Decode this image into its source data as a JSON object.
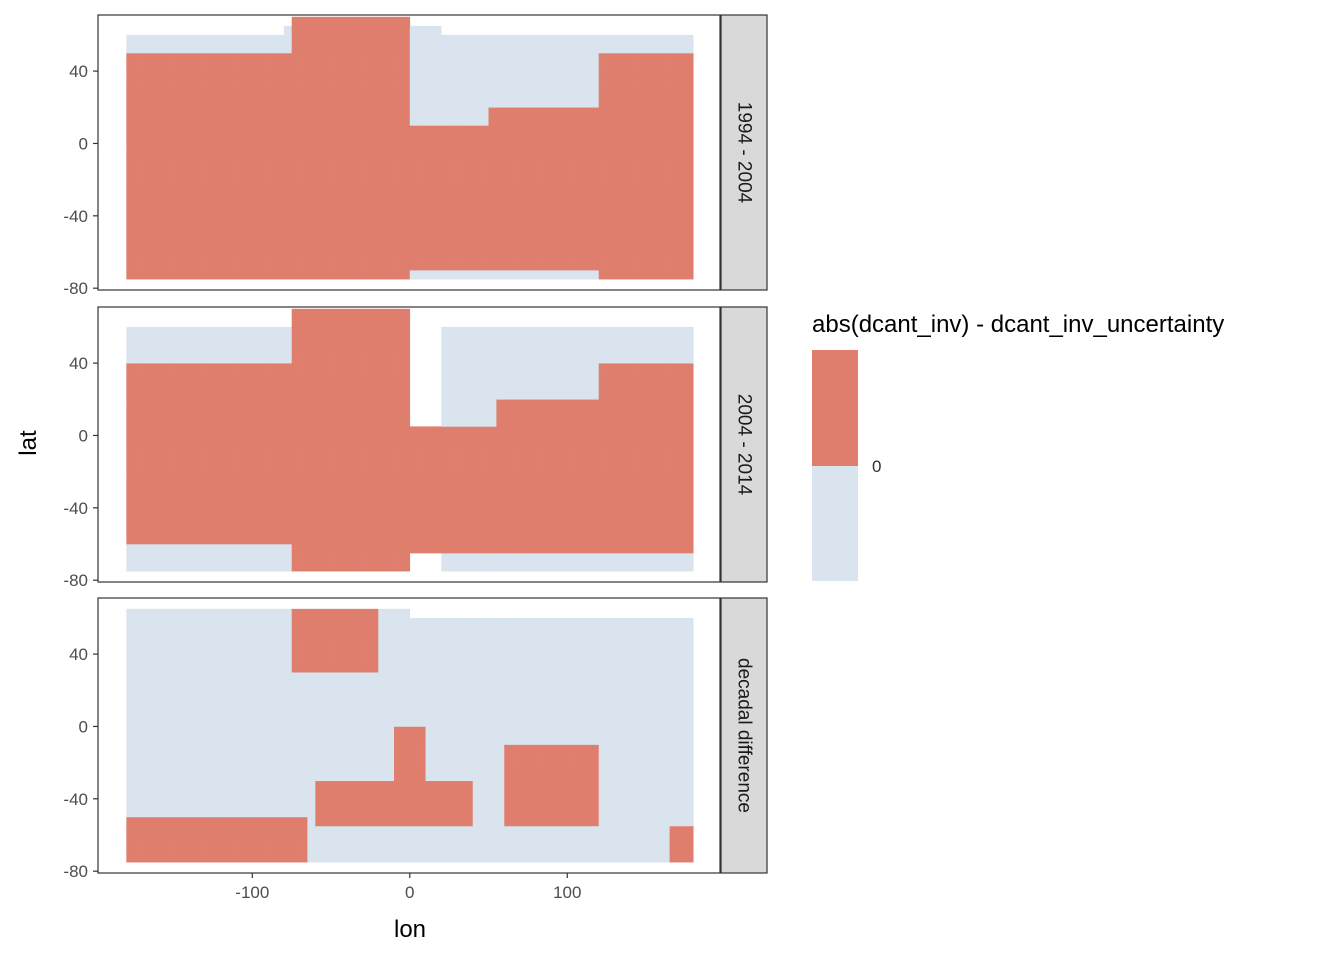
{
  "chart_data": {
    "type": "heatmap",
    "xlabel": "lon",
    "ylabel": "lat",
    "xlim": [
      -198,
      197
    ],
    "ylim": [
      -81,
      71
    ],
    "x_ticks": [
      -100,
      0,
      100
    ],
    "x_tick_labels": [
      "-100",
      "0",
      "100"
    ],
    "y_ticks": [
      -80,
      -40,
      0,
      40
    ],
    "y_tick_labels": [
      "-80",
      "-40",
      "0",
      "40"
    ],
    "cell_size_deg": 5,
    "legend": {
      "title": "abs(dcant_inv) - dcant_inv_uncertainty",
      "break_label": "0",
      "break_value": 0,
      "classes": [
        {
          "key": "above",
          "meaning": "> 0",
          "color": "#E07E6E"
        },
        {
          "key": "below",
          "meaning": "< 0",
          "color": "#D9E4EE"
        }
      ],
      "placement": "right"
    },
    "colors": {
      "above": "#E07E6E",
      "below": "#D9E4EE",
      "strip_fill": "#D9D9D9",
      "panel_border": "#333333"
    },
    "facets": [
      {
        "label": "1994 - 2004",
        "regions": [
          {
            "sign": "below",
            "lon": [
              -180,
              -60
            ],
            "lat": [
              -75,
              60
            ]
          },
          {
            "sign": "below",
            "lon": [
              -80,
              20
            ],
            "lat": [
              -75,
              65
            ]
          },
          {
            "sign": "below",
            "lon": [
              20,
              180
            ],
            "lat": [
              -75,
              60
            ]
          },
          {
            "sign": "above",
            "lon": [
              -180,
              -75
            ],
            "lat": [
              -75,
              50
            ]
          },
          {
            "sign": "above",
            "lon": [
              -75,
              0
            ],
            "lat": [
              -75,
              70
            ]
          },
          {
            "sign": "above",
            "lon": [
              0,
              60
            ],
            "lat": [
              -70,
              10
            ]
          },
          {
            "sign": "above",
            "lon": [
              50,
              130
            ],
            "lat": [
              -70,
              20
            ]
          },
          {
            "sign": "above",
            "lon": [
              120,
              180
            ],
            "lat": [
              -75,
              50
            ]
          }
        ]
      },
      {
        "label": "2004 - 2014",
        "regions": [
          {
            "sign": "below",
            "lon": [
              -180,
              -60
            ],
            "lat": [
              -75,
              60
            ]
          },
          {
            "sign": "below",
            "lon": [
              20,
              180
            ],
            "lat": [
              -75,
              60
            ]
          },
          {
            "sign": "above",
            "lon": [
              -180,
              -75
            ],
            "lat": [
              -60,
              40
            ]
          },
          {
            "sign": "above",
            "lon": [
              -75,
              0
            ],
            "lat": [
              -75,
              70
            ]
          },
          {
            "sign": "above",
            "lon": [
              0,
              60
            ],
            "lat": [
              -65,
              5
            ]
          },
          {
            "sign": "above",
            "lon": [
              55,
              130
            ],
            "lat": [
              -65,
              20
            ]
          },
          {
            "sign": "above",
            "lon": [
              120,
              180
            ],
            "lat": [
              -65,
              40
            ]
          }
        ]
      },
      {
        "label": "decadal difference",
        "regions": [
          {
            "sign": "below",
            "lon": [
              -180,
              -75
            ],
            "lat": [
              -75,
              65
            ]
          },
          {
            "sign": "below",
            "lon": [
              -80,
              0
            ],
            "lat": [
              -75,
              65
            ]
          },
          {
            "sign": "below",
            "lon": [
              0,
              180
            ],
            "lat": [
              -75,
              60
            ]
          },
          {
            "sign": "above",
            "lon": [
              -180,
              -65
            ],
            "lat": [
              -75,
              -50
            ]
          },
          {
            "sign": "above",
            "lon": [
              -75,
              -20
            ],
            "lat": [
              30,
              65
            ]
          },
          {
            "sign": "above",
            "lon": [
              -60,
              40
            ],
            "lat": [
              -55,
              -30
            ]
          },
          {
            "sign": "above",
            "lon": [
              -10,
              10
            ],
            "lat": [
              -35,
              0
            ]
          },
          {
            "sign": "above",
            "lon": [
              60,
              120
            ],
            "lat": [
              -55,
              -10
            ]
          },
          {
            "sign": "above",
            "lon": [
              165,
              180
            ],
            "lat": [
              -75,
              -55
            ]
          }
        ]
      }
    ]
  }
}
